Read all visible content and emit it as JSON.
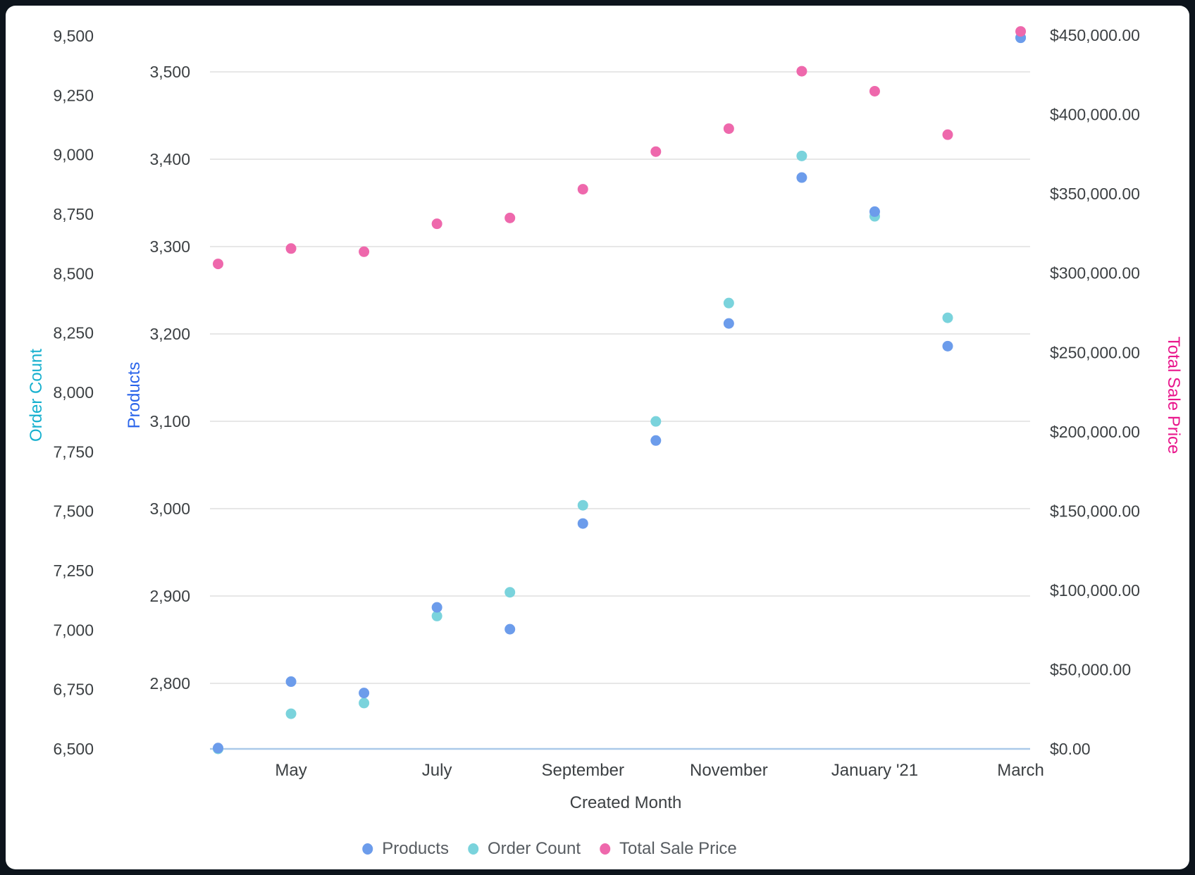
{
  "chart_data": {
    "type": "scatter",
    "title": "",
    "x_axis": {
      "label": "Created Month",
      "months": [
        "April 2020",
        "May 2020",
        "June 2020",
        "July 2020",
        "August 2020",
        "September 2020",
        "October 2020",
        "November 2020",
        "December 2020",
        "January 2021",
        "February 2021",
        "March 2021"
      ],
      "visible_ticks": [
        {
          "month_index": 1,
          "label": "May"
        },
        {
          "month_index": 3,
          "label": "July"
        },
        {
          "month_index": 5,
          "label": "September"
        },
        {
          "month_index": 7,
          "label": "November"
        },
        {
          "month_index": 9,
          "label": "January '21"
        },
        {
          "month_index": 11,
          "label": "March"
        }
      ]
    },
    "y_axes": {
      "order_count": {
        "title": "Order Count",
        "color": "#17b0ce",
        "min": 6500,
        "max": 9500,
        "tick_step": 250,
        "ticks": [
          {
            "value": 6500,
            "label": "6,500"
          },
          {
            "value": 6750,
            "label": "6,750"
          },
          {
            "value": 7000,
            "label": "7,000"
          },
          {
            "value": 7250,
            "label": "7,250"
          },
          {
            "value": 7500,
            "label": "7,500"
          },
          {
            "value": 7750,
            "label": "7,750"
          },
          {
            "value": 8000,
            "label": "8,000"
          },
          {
            "value": 8250,
            "label": "8,250"
          },
          {
            "value": 8500,
            "label": "8,500"
          },
          {
            "value": 8750,
            "label": "8,750"
          },
          {
            "value": 9000,
            "label": "9,000"
          },
          {
            "value": 9250,
            "label": "9,250"
          },
          {
            "value": 9500,
            "label": "9,500"
          }
        ]
      },
      "products": {
        "title": "Products",
        "color": "#2a64ea",
        "min": 2800,
        "max": 3500,
        "tick_step": 100,
        "gridlines": true,
        "ticks": [
          {
            "value": 2800,
            "label": "2,800"
          },
          {
            "value": 2900,
            "label": "2,900"
          },
          {
            "value": 3000,
            "label": "3,000"
          },
          {
            "value": 3100,
            "label": "3,100"
          },
          {
            "value": 3200,
            "label": "3,200"
          },
          {
            "value": 3300,
            "label": "3,300"
          },
          {
            "value": 3400,
            "label": "3,400"
          },
          {
            "value": 3500,
            "label": "3,500"
          }
        ]
      },
      "total_sale_price": {
        "title": "Total Sale Price",
        "color": "#e9168c",
        "min": 0,
        "max": 450000,
        "tick_step": 50000,
        "ticks": [
          {
            "value": 0,
            "label": "$0.00"
          },
          {
            "value": 50000,
            "label": "$50,000.00"
          },
          {
            "value": 100000,
            "label": "$100,000.00"
          },
          {
            "value": 150000,
            "label": "$150,000.00"
          },
          {
            "value": 200000,
            "label": "$200,000.00"
          },
          {
            "value": 250000,
            "label": "$250,000.00"
          },
          {
            "value": 300000,
            "label": "$300,000.00"
          },
          {
            "value": 350000,
            "label": "$350,000.00"
          },
          {
            "value": 400000,
            "label": "$400,000.00"
          },
          {
            "value": 450000,
            "label": "$450,000.00"
          }
        ]
      }
    },
    "series": [
      {
        "name": "Products",
        "axis": "products",
        "color": "#6c9ceb",
        "values": [
          2726,
          2802,
          2789,
          2887,
          2862,
          2983,
          3078,
          3212,
          3379,
          3340,
          3186,
          3539
        ]
      },
      {
        "name": "Order Count",
        "axis": "order_count",
        "color": "#7ad3dc",
        "values": [
          6500,
          6648,
          6693,
          7059,
          7159,
          7525,
          7878,
          8376,
          8995,
          8741,
          8314,
          9493
        ]
      },
      {
        "name": "Total Sale Price",
        "axis": "total_sale_price",
        "color": "#ee68ac",
        "values": [
          305800,
          315500,
          313500,
          331100,
          334800,
          352900,
          376600,
          391100,
          427300,
          414700,
          387300,
          452400
        ]
      }
    ],
    "layout": {
      "legend_position": "bottom",
      "grid_color": "#e7e7e7",
      "baseline_color": "#aac9e9",
      "tick_text_color": "#3c4043",
      "background": "#ffffff"
    }
  }
}
